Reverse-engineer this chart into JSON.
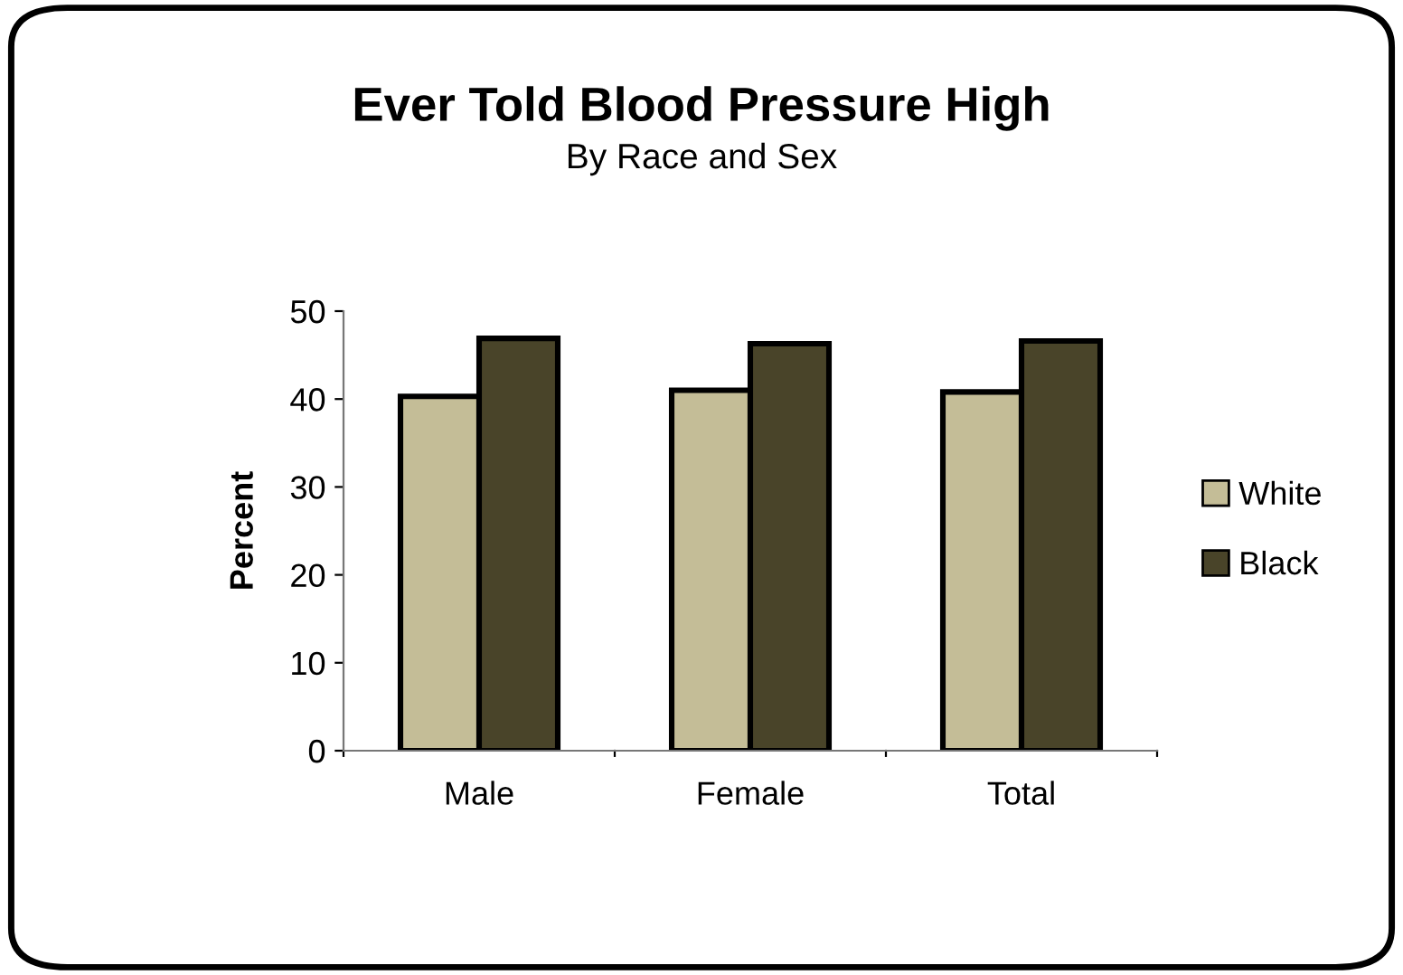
{
  "chart_data": {
    "type": "bar",
    "title": "Ever Told Blood Pressure High",
    "subtitle": "By Race and Sex",
    "ylabel": "Percent",
    "categories": [
      "Male",
      "Female",
      "Total"
    ],
    "series": [
      {
        "name": "White",
        "color": "#c4bd97",
        "values": [
          40.3,
          41.0,
          40.8
        ]
      },
      {
        "name": "Black",
        "color": "#494429",
        "values": [
          46.9,
          46.3,
          46.6
        ]
      }
    ],
    "ylim": [
      0,
      50
    ],
    "yticks": [
      0,
      10,
      20,
      30,
      40,
      50
    ],
    "grid": false,
    "legend": "right"
  }
}
